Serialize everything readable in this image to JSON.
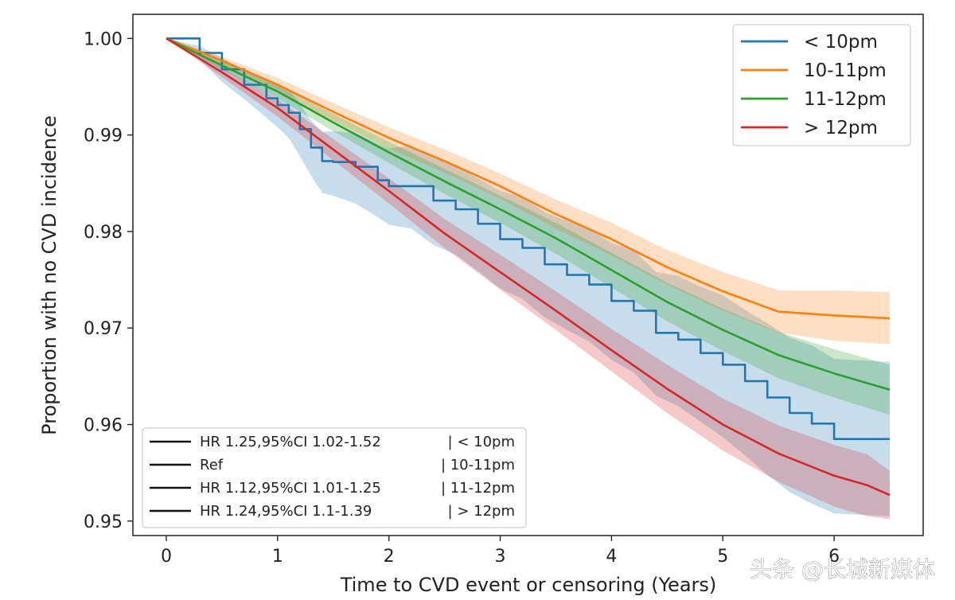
{
  "chart_data": {
    "type": "line",
    "title": "",
    "xlabel": "Time to CVD event or censoring (Years)",
    "ylabel": "Proportion with no CVD incidence",
    "xlim": [
      -0.3,
      6.8
    ],
    "ylim": [
      0.9485,
      1.0025
    ],
    "x_ticks": [
      0,
      1,
      2,
      3,
      4,
      5,
      6
    ],
    "y_ticks": [
      0.95,
      0.96,
      0.97,
      0.98,
      0.99,
      1.0
    ],
    "x_tick_labels": [
      "0",
      "1",
      "2",
      "3",
      "4",
      "5",
      "6"
    ],
    "y_tick_labels": [
      "0.95",
      "0.96",
      "0.97",
      "0.98",
      "0.99",
      "1.00"
    ],
    "grid": false,
    "legend_position": "top-right",
    "series": [
      {
        "name": "< 10pm",
        "color": "#1f77b4",
        "x": [
          0,
          0.3,
          0.5,
          0.7,
          0.9,
          1.0,
          1.1,
          1.2,
          1.3,
          1.4,
          1.5,
          1.7,
          1.9,
          2.0,
          2.2,
          2.4,
          2.6,
          2.8,
          3.0,
          3.2,
          3.4,
          3.6,
          3.8,
          4.0,
          4.2,
          4.4,
          4.6,
          4.8,
          5.0,
          5.2,
          5.4,
          5.6,
          5.8,
          6.0,
          6.5
        ],
        "y": [
          1.0,
          0.9985,
          0.9968,
          0.9952,
          0.9938,
          0.9931,
          0.9923,
          0.9906,
          0.9887,
          0.9873,
          0.9872,
          0.9867,
          0.9853,
          0.9847,
          0.9847,
          0.9832,
          0.9823,
          0.9808,
          0.9792,
          0.9783,
          0.9766,
          0.9755,
          0.9745,
          0.9728,
          0.9718,
          0.9695,
          0.9688,
          0.9674,
          0.9662,
          0.9645,
          0.9628,
          0.9612,
          0.9601,
          0.9585,
          0.9585
        ],
        "ci_lower": [
          1.0,
          0.9978,
          0.9955,
          0.9937,
          0.9918,
          0.9908,
          0.9897,
          0.9878,
          0.9858,
          0.984,
          0.9837,
          0.9829,
          0.9815,
          0.9807,
          0.9803,
          0.9786,
          0.9776,
          0.9759,
          0.9741,
          0.973,
          0.9711,
          0.9698,
          0.9686,
          0.9667,
          0.9654,
          0.963,
          0.9619,
          0.9603,
          0.9587,
          0.9568,
          0.9548,
          0.953,
          0.9518,
          0.9508,
          0.9505
        ],
        "ci_upper": [
          1.0,
          0.9992,
          0.998,
          0.9967,
          0.9956,
          0.9953,
          0.9948,
          0.9932,
          0.9915,
          0.9903,
          0.9904,
          0.9902,
          0.9891,
          0.9886,
          0.9889,
          0.9877,
          0.9869,
          0.9855,
          0.9842,
          0.9836,
          0.982,
          0.9811,
          0.9803,
          0.9788,
          0.9781,
          0.9758,
          0.9754,
          0.9743,
          0.9734,
          0.9719,
          0.9705,
          0.969,
          0.9682,
          0.9668,
          0.9665
        ]
      },
      {
        "name": "10-11pm",
        "color": "#ff7f0e",
        "x": [
          0,
          0.5,
          1.0,
          1.5,
          2.0,
          2.5,
          3.0,
          3.5,
          4.0,
          4.5,
          5.0,
          5.5,
          6.0,
          6.5
        ],
        "y": [
          1.0,
          0.9977,
          0.9952,
          0.9924,
          0.9897,
          0.9873,
          0.9847,
          0.9818,
          0.9792,
          0.9763,
          0.9738,
          0.9717,
          0.9713,
          0.971
        ],
        "ci_lower": [
          1.0,
          0.9973,
          0.9945,
          0.9915,
          0.9886,
          0.9861,
          0.9834,
          0.9803,
          0.9775,
          0.9745,
          0.9718,
          0.9695,
          0.9687,
          0.9683
        ],
        "ci_upper": [
          1.0,
          0.9981,
          0.9959,
          0.9933,
          0.9908,
          0.9885,
          0.986,
          0.9833,
          0.9809,
          0.9781,
          0.9758,
          0.9739,
          0.9739,
          0.9737
        ]
      },
      {
        "name": "11-12pm",
        "color": "#2ca02c",
        "x": [
          0,
          0.5,
          1.0,
          1.5,
          2.0,
          2.5,
          3.0,
          3.5,
          4.0,
          4.5,
          5.0,
          5.5,
          6.0,
          6.5
        ],
        "y": [
          1.0,
          0.9972,
          0.9945,
          0.9913,
          0.9882,
          0.9852,
          0.9823,
          0.9793,
          0.976,
          0.9727,
          0.9698,
          0.9672,
          0.9653,
          0.9636
        ],
        "ci_lower": [
          1.0,
          0.9968,
          0.9938,
          0.9904,
          0.9871,
          0.9839,
          0.9809,
          0.9777,
          0.9742,
          0.9707,
          0.9676,
          0.9648,
          0.9628,
          0.961
        ],
        "ci_upper": [
          1.0,
          0.9976,
          0.9952,
          0.9922,
          0.9893,
          0.9865,
          0.9837,
          0.9809,
          0.9778,
          0.9747,
          0.972,
          0.9696,
          0.9678,
          0.9662
        ]
      },
      {
        "name": "> 12pm",
        "color": "#d62728",
        "x": [
          0,
          0.5,
          1.0,
          1.5,
          2.0,
          2.5,
          3.0,
          3.5,
          4.0,
          4.5,
          5.0,
          5.5,
          6.0,
          6.3,
          6.5
        ],
        "y": [
          1.0,
          0.9965,
          0.9928,
          0.9885,
          0.9842,
          0.9798,
          0.9758,
          0.9718,
          0.9677,
          0.9637,
          0.96,
          0.957,
          0.9547,
          0.9537,
          0.9527
        ],
        "ci_lower": [
          1.0,
          0.996,
          0.9919,
          0.9874,
          0.9829,
          0.9783,
          0.974,
          0.9698,
          0.9655,
          0.9612,
          0.9573,
          0.9541,
          0.9515,
          0.9505,
          0.9502
        ],
        "ci_upper": [
          1.0,
          0.997,
          0.9937,
          0.9896,
          0.9855,
          0.9813,
          0.9776,
          0.9738,
          0.9699,
          0.9662,
          0.9627,
          0.9599,
          0.9579,
          0.9569,
          0.9552
        ]
      }
    ],
    "hr_legend": [
      {
        "hr": "HR 1.25,95%CI 1.02-1.52",
        "group": "| < 10pm"
      },
      {
        "hr": "Ref",
        "group": "| 10-11pm"
      },
      {
        "hr": "HR 1.12,95%CI 1.01-1.25",
        "group": "| 11-12pm"
      },
      {
        "hr": "HR 1.24,95%CI 1.1-1.39",
        "group": "| > 12pm"
      }
    ]
  },
  "watermark": "头条 @长城新媒体"
}
